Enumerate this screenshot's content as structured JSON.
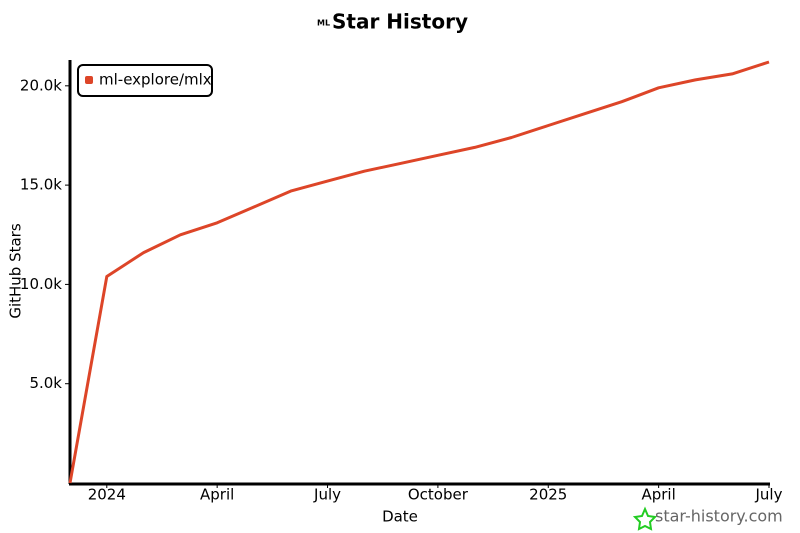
{
  "chart_data": {
    "type": "line",
    "title": "Star History",
    "x_label": "Date",
    "y_label": "GitHub Stars",
    "watermark": "star-history.com",
    "x": [
      "2023-12",
      "2024-01",
      "2024-02",
      "2024-03",
      "2024-04",
      "2024-05",
      "2024-06",
      "2024-07",
      "2024-08",
      "2024-09",
      "2024-10",
      "2024-11",
      "2024-12",
      "2025-01",
      "2025-02",
      "2025-03",
      "2025-04",
      "2025-05",
      "2025-06",
      "2025-07"
    ],
    "series": [
      {
        "name": "ml-explore/mlx",
        "color": "#dd4528",
        "values": [
          0,
          10400,
          11600,
          12500,
          13100,
          13900,
          14700,
          15200,
          15700,
          16100,
          16500,
          16900,
          17400,
          18000,
          18600,
          19200,
          19900,
          20300,
          20600,
          21200
        ]
      }
    ],
    "xlim": [
      "2023-12",
      "2025-07"
    ],
    "xticks": [
      {
        "value": "2024-01",
        "label": "2024"
      },
      {
        "value": "2024-04",
        "label": "April"
      },
      {
        "value": "2024-07",
        "label": "July"
      },
      {
        "value": "2024-10",
        "label": "October"
      },
      {
        "value": "2025-01",
        "label": "2025"
      },
      {
        "value": "2025-04",
        "label": "April"
      },
      {
        "value": "2025-07",
        "label": "July"
      }
    ],
    "ylim": [
      0,
      21300
    ],
    "yticks": [
      {
        "value": 5000,
        "label": "5.0k"
      },
      {
        "value": 10000,
        "label": "10.0k"
      },
      {
        "value": 15000,
        "label": "15.0k"
      },
      {
        "value": 20000,
        "label": "20.0k"
      }
    ],
    "legend": "upper left"
  }
}
